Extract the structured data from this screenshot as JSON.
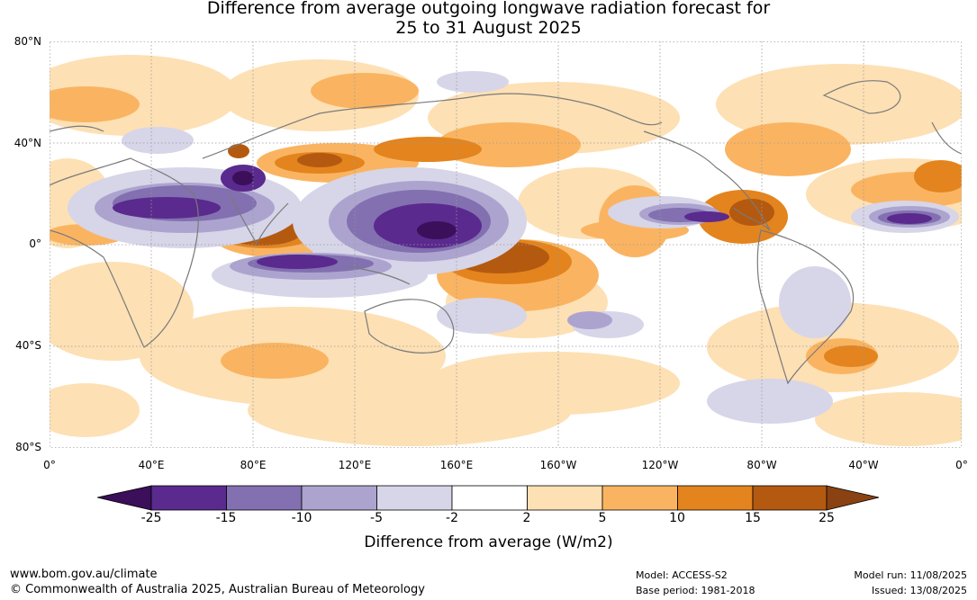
{
  "title_line1": "Difference from average outgoing longwave radiation forecast for",
  "title_line2": "25 to 31 August 2025",
  "y_axis_labels": [
    "80°N",
    "40°N",
    "0°",
    "40°S",
    "80°S"
  ],
  "x_axis_labels": [
    "0°",
    "40°E",
    "80°E",
    "120°E",
    "160°E",
    "160°W",
    "120°W",
    "80°W",
    "40°W",
    "0°"
  ],
  "legend": {
    "title": "Difference from average (W/m2)",
    "ticks": [
      "-25",
      "-15",
      "-10",
      "-5",
      "-2",
      "2",
      "5",
      "10",
      "15",
      "25"
    ],
    "colors": [
      "#3b0f5a",
      "#5a2a8e",
      "#8270b0",
      "#aca4cf",
      "#d7d5e8",
      "#ffffff",
      "#fde0b4",
      "#fab461",
      "#e3841e",
      "#b45a10",
      "#8a4212"
    ]
  },
  "footer": {
    "url": "www.bom.gov.au/climate",
    "copyright": "© Commonwealth of Australia 2025, Australian Bureau of Meteorology",
    "model": "Model: ACCESS-S2",
    "base_period": "Base period: 1981-2018",
    "model_run": "Model run: 11/08/2025",
    "issued": "Issued: 13/08/2025"
  }
}
